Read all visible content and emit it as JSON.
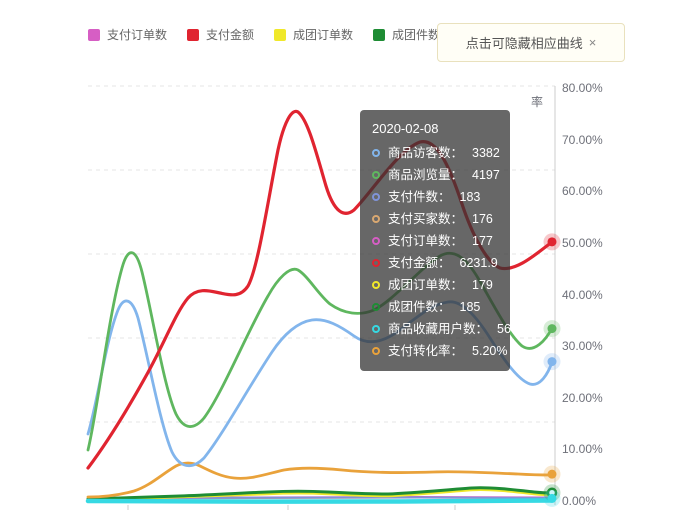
{
  "notice": {
    "text": "点击可隐藏相应曲线",
    "close": "×"
  },
  "legend": {
    "keys": [
      "pay_orders",
      "pay_amount",
      "group_orders",
      "group_items"
    ]
  },
  "chart_data": {
    "type": "line",
    "hover_date": "2020-02-08",
    "y_axis_right": {
      "name": "率",
      "unit": "%",
      "min": 0,
      "max": 80,
      "ticks": [
        {
          "label": "80.00%",
          "pct": 80
        },
        {
          "label": "70.00%",
          "pct": 70
        },
        {
          "label": "60.00%",
          "pct": 60
        },
        {
          "label": "50.00%",
          "pct": 50
        },
        {
          "label": "40.00%",
          "pct": 40
        },
        {
          "label": "30.00%",
          "pct": 30
        },
        {
          "label": "20.00%",
          "pct": 20
        },
        {
          "label": "10.00%",
          "pct": 10
        },
        {
          "label": "0.00%",
          "pct": 0
        }
      ]
    },
    "series": [
      {
        "key": "visitors",
        "name": "商品访客数",
        "color": "#82b5ec",
        "value": "3382",
        "end_pct": 27.0,
        "marker": "dot"
      },
      {
        "key": "views",
        "name": "商品浏览量",
        "color": "#5fb75f",
        "value": "4197",
        "end_pct": 33.4,
        "marker": "dot"
      },
      {
        "key": "pay_items",
        "name": "支付件数",
        "color": "#8093d8",
        "value": "183",
        "end_pct": null,
        "marker": "dot"
      },
      {
        "key": "pay_buyers",
        "name": "支付买家数",
        "color": "#d9a871",
        "value": "176",
        "end_pct": null,
        "marker": "dot"
      },
      {
        "key": "pay_orders",
        "name": "支付订单数",
        "color": "#d65ec4",
        "value": "177",
        "end_pct": null,
        "marker": "dot"
      },
      {
        "key": "pay_amount",
        "name": "支付金额",
        "color": "#e02430",
        "value": "6231.9",
        "end_pct": 50.2,
        "marker": "dot"
      },
      {
        "key": "group_orders",
        "name": "成团订单数",
        "color": "#f0e82a",
        "value": "179",
        "end_pct": null,
        "marker": "dot"
      },
      {
        "key": "group_items",
        "name": "成团件数",
        "color": "#1e8c34",
        "value": "185",
        "end_pct": 1.6,
        "marker": "ring"
      },
      {
        "key": "fav_users",
        "name": "商品收藏用户数",
        "color": "#36d9e3",
        "value": "56",
        "end_pct": 0.5,
        "marker": "dot"
      },
      {
        "key": "conv_rate",
        "name": "支付转化率",
        "color": "#e9a23b",
        "value": "5.20%",
        "end_pct": 5.2,
        "marker": "dot"
      }
    ],
    "tooltip_label_suffix": "："
  }
}
